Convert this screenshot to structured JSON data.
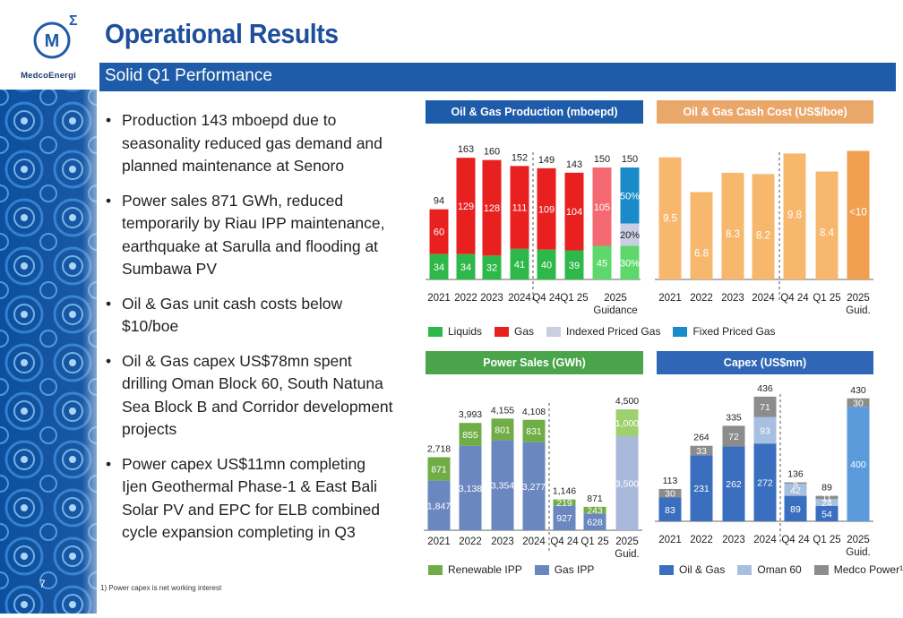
{
  "brand": {
    "name": "MedcoEnergi",
    "mark": "M"
  },
  "page": {
    "title": "Operational Results",
    "subtitle": "Solid Q1 Performance",
    "number": "7",
    "footnote": "1) Power capex is net working interest"
  },
  "bullets": [
    "Production 143 mboepd due to seasonality reduced gas demand and planned maintenance at Senoro",
    "Power sales 871 GWh, reduced temporarily by Riau IPP maintenance, earthquake at Sarulla and flooding at Sumbawa PV",
    "Oil & Gas unit cash costs below $10/boe",
    "Oil & Gas capex US$78mn spent drilling Oman Block 60, South Natuna Sea Block B and Corridor development projects",
    "Power capex US$11mn completing Ijen Geothermal Phase-1 & East Bali Solar PV and EPC for ELB combined cycle expansion completing in Q3"
  ],
  "colors": {
    "primary": "#1e5ba8",
    "title": "#1e4f9a",
    "liquids": "#2fb84a",
    "gas": "#e8201f",
    "gas_light": "#f56a72",
    "liquids_light": "#5fd86b",
    "indexed": "#c9cfe3",
    "fixed": "#1b8ac9",
    "cash_cost": "#f7b86e",
    "cash_header": "#e9a869",
    "renewable": "#70ad47",
    "gas_ipp": "#6a87c0",
    "gas_ipp_light": "#a9b9dc",
    "renewable_light": "#9fd06e",
    "capex_oil": "#3a6fbf",
    "capex_oman": "#a7bfe0",
    "capex_power": "#8c8c8c",
    "capex_guid": "#5b9bdc",
    "power_header": "#4aa54a",
    "capex_header": "#2f66b5",
    "prod_header": "#1e5ba8"
  },
  "chart_data": [
    {
      "type": "bar",
      "title": "Oil & Gas Production (mboepd)",
      "categories": [
        "2021",
        "2022",
        "2023",
        "2024",
        "Q4 24",
        "Q1 25",
        "2025\nGuidance"
      ],
      "stacked": true,
      "series": [
        {
          "name": "Liquids",
          "values": [
            34,
            34,
            32,
            41,
            40,
            39,
            45
          ]
        },
        {
          "name": "Gas",
          "values": [
            60,
            129,
            128,
            111,
            109,
            104,
            105
          ]
        }
      ],
      "guidance_split": {
        "category": "2025\nGuidance",
        "segments": [
          {
            "label": "30%",
            "share": 30,
            "color_key": "liquids_light"
          },
          {
            "label": "20%",
            "share": 20,
            "color_key": "indexed"
          },
          {
            "label": "50%",
            "share": 50,
            "color_key": "fixed"
          }
        ]
      },
      "totals": [
        94,
        163,
        160,
        152,
        149,
        143,
        150,
        150
      ],
      "legend": [
        "Liquids",
        "Gas",
        "Indexed Priced Gas",
        "Fixed Priced Gas"
      ],
      "ylim": [
        0,
        180
      ]
    },
    {
      "type": "bar",
      "title": "Oil & Gas Cash Cost (US$/boe)",
      "categories": [
        "2021",
        "2022",
        "2023",
        "2024",
        "Q4 24",
        "Q1 25",
        "2025\nGuid."
      ],
      "values": [
        9.5,
        6.8,
        8.3,
        8.2,
        9.8,
        8.4,
        10
      ],
      "labels": [
        "9.5",
        "6.8",
        "8.3",
        "8.2",
        "9.8",
        "8.4",
        "<10"
      ],
      "ylim": [
        0,
        11.5
      ]
    },
    {
      "type": "bar",
      "title": "Power Sales (GWh)",
      "categories": [
        "2021",
        "2022",
        "2023",
        "2024",
        "Q4 24",
        "Q1 25",
        "2025\nGuid."
      ],
      "stacked": true,
      "series": [
        {
          "name": "Gas IPP",
          "values": [
            1847,
            3138,
            3354,
            3277,
            927,
            628,
            3500
          ]
        },
        {
          "name": "Renewable IPP",
          "values": [
            871,
            855,
            801,
            831,
            219,
            243,
            1000
          ]
        }
      ],
      "value_labels": [
        [
          "1,847",
          "3,138",
          "3,354",
          "3,277",
          "927",
          "628",
          "3,500"
        ],
        [
          "871",
          "855",
          "801",
          "831",
          "219",
          "243",
          "1,000"
        ]
      ],
      "totals": [
        "2,718",
        "3,993",
        "4,155",
        "4,108",
        "1,146",
        "871",
        "4,500"
      ],
      "legend": [
        "Renewable IPP",
        "Gas IPP"
      ],
      "ylim": [
        0,
        5000
      ]
    },
    {
      "type": "bar",
      "title": "Capex (US$mn)",
      "categories": [
        "2021",
        "2022",
        "2023",
        "2024",
        "Q4 24",
        "Q1 25",
        "2025\nGuid."
      ],
      "stacked": true,
      "series": [
        {
          "name": "Oil & Gas",
          "values": [
            83,
            231,
            262,
            272,
            89,
            54,
            400
          ]
        },
        {
          "name": "Oman 60",
          "values": [
            0,
            0,
            0,
            93,
            42,
            24,
            0
          ]
        },
        {
          "name": "Medco Power¹",
          "values": [
            30,
            33,
            72,
            71,
            5,
            11,
            30
          ]
        }
      ],
      "totals": [
        113,
        264,
        335,
        436,
        136,
        89,
        430
      ],
      "legend": [
        "Oil & Gas",
        "Oman 60",
        "Medco Power¹"
      ],
      "ylim": [
        0,
        470
      ]
    }
  ]
}
